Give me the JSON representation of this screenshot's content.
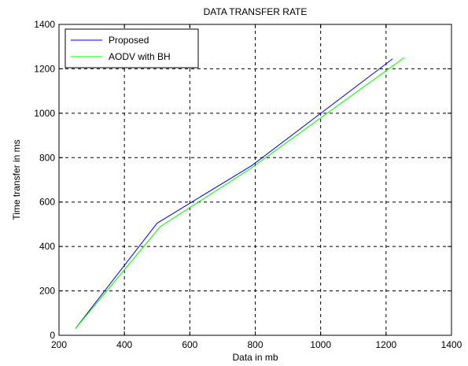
{
  "chart_data": {
    "type": "line",
    "title": "DATA TRANSFER RATE",
    "xlabel": "Data in mb",
    "ylabel": "Time transfer in ms",
    "xlim": [
      200,
      1400
    ],
    "ylim": [
      0,
      1400
    ],
    "xticks": [
      200,
      400,
      600,
      800,
      1000,
      1200,
      1400
    ],
    "yticks": [
      0,
      200,
      400,
      600,
      800,
      1000,
      1200,
      1400
    ],
    "grid": true,
    "grid_style": "dashed",
    "legend_position": "top-left",
    "series": [
      {
        "name": "Proposed",
        "color": "#0000ff",
        "x": [
          250,
          500,
          790,
          1220
        ],
        "y": [
          30,
          505,
          765,
          1245
        ]
      },
      {
        "name": "AODV with BH",
        "color": "#00ff00",
        "x": [
          250,
          510,
          785,
          1255
        ],
        "y": [
          30,
          490,
          750,
          1250
        ]
      }
    ]
  }
}
